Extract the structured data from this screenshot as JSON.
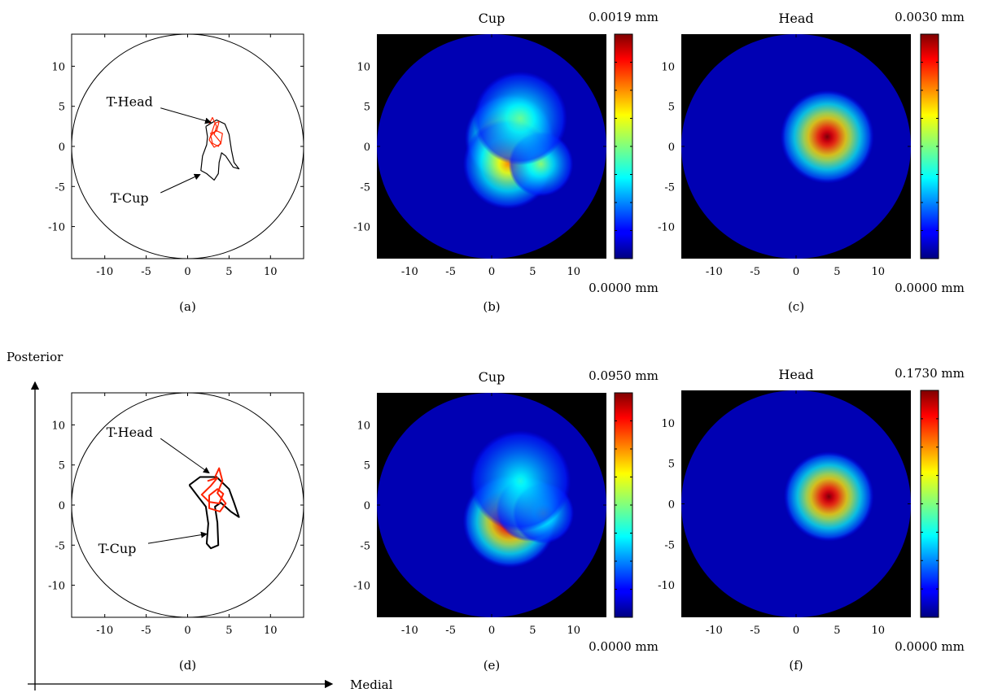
{
  "figure": {
    "posterior_label": "Posterior",
    "medial_label": "Medial"
  },
  "chart_data": [
    {
      "id": "a",
      "type": "line",
      "caption": "(a)",
      "xlim": [
        -14,
        14
      ],
      "ylim": [
        -14,
        14
      ],
      "xticks": [
        -10,
        -5,
        0,
        5,
        10
      ],
      "yticks": [
        10,
        5,
        0,
        -5,
        -10
      ],
      "grid": false,
      "boundary": {
        "shape": "circle",
        "center": [
          0,
          0
        ],
        "radius": 14
      },
      "annotations": [
        {
          "text": "T-Head",
          "label_at": [
            -7,
            5
          ],
          "arrow_to": [
            2.8,
            3
          ]
        },
        {
          "text": "T-Cup",
          "label_at": [
            -7,
            -7
          ],
          "arrow_to": [
            1.5,
            -3.5
          ]
        }
      ],
      "series": [
        {
          "color": "#000000",
          "points": [
            [
              2.2,
              2.5
            ],
            [
              3.5,
              3.3
            ],
            [
              4.5,
              2.8
            ],
            [
              5,
              1.5
            ],
            [
              5.3,
              -0.5
            ],
            [
              5.6,
              -2
            ],
            [
              6.2,
              -2.8
            ],
            [
              5.5,
              -2.6
            ],
            [
              4.6,
              -1.2
            ],
            [
              4.1,
              -0.8
            ],
            [
              3.8,
              -2
            ],
            [
              3.7,
              -3.4
            ],
            [
              3.2,
              -4.2
            ],
            [
              2.3,
              -3.4
            ],
            [
              1.6,
              -3
            ],
            [
              1.8,
              -1.2
            ],
            [
              2.3,
              0.2
            ],
            [
              2.4,
              1.2
            ],
            [
              2.2,
              2.5
            ]
          ]
        },
        {
          "color": "#ff2200",
          "points": [
            [
              2.6,
              2.8
            ],
            [
              3,
              3.6
            ],
            [
              3.5,
              2.5
            ],
            [
              3.2,
              1.5
            ],
            [
              4,
              0.5
            ],
            [
              3.7,
              0
            ],
            [
              3,
              0.4
            ],
            [
              2.8,
              1.3
            ],
            [
              3.4,
              2
            ],
            [
              4.2,
              1.6
            ],
            [
              4,
              0.3
            ],
            [
              3.2,
              -0.1
            ],
            [
              2.6,
              0.8
            ],
            [
              3.3,
              2.9
            ],
            [
              3.8,
              3.1
            ],
            [
              3.5,
              1.9
            ],
            [
              2.7,
              1.6
            ]
          ]
        }
      ]
    },
    {
      "id": "b",
      "type": "heatmap",
      "caption": "(b)",
      "title": "Cup",
      "colorbar_max": "0.0019 mm",
      "colorbar_min": "0.0000 mm",
      "xlim": [
        -14,
        14
      ],
      "ylim": [
        -14,
        14
      ],
      "xticks": [
        -10,
        -5,
        0,
        5,
        10
      ],
      "yticks": [
        10,
        5,
        0,
        -5,
        -10
      ],
      "background": "#000000",
      "disk": {
        "center": [
          0,
          0
        ],
        "radius": 14
      },
      "hotspots": [
        {
          "center": [
            2.2,
            1.0
          ],
          "radius": 2.5,
          "intensity": 1.0
        },
        {
          "center": [
            2.0,
            -2.2
          ],
          "radius": 2.5,
          "intensity": 0.7
        },
        {
          "center": [
            6.0,
            -2.2
          ],
          "radius": 1.8,
          "intensity": 0.45
        },
        {
          "center": [
            3.5,
            3.5
          ],
          "radius": 2.6,
          "intensity": 0.4
        }
      ]
    },
    {
      "id": "c",
      "type": "heatmap",
      "caption": "(c)",
      "title": "Head",
      "colorbar_max": "0.0030 mm",
      "colorbar_min": "0.0000 mm",
      "xlim": [
        -14,
        14
      ],
      "ylim": [
        -14,
        14
      ],
      "xticks": [
        -10,
        -5,
        0,
        5,
        10
      ],
      "yticks": [
        10,
        5,
        0,
        -5,
        -10
      ],
      "background": "#000000",
      "disk": {
        "center": [
          0,
          0
        ],
        "radius": 14
      },
      "hotspots": [
        {
          "center": [
            3.8,
            1.2
          ],
          "radius": 2.6,
          "intensity": 1.0
        }
      ]
    },
    {
      "id": "d",
      "type": "line",
      "caption": "(d)",
      "xlim": [
        -14,
        14
      ],
      "ylim": [
        -14,
        14
      ],
      "xticks": [
        -10,
        -5,
        0,
        5,
        10
      ],
      "yticks": [
        10,
        5,
        0,
        -5,
        -10
      ],
      "grid": false,
      "boundary": {
        "shape": "circle",
        "center": [
          0,
          0
        ],
        "radius": 14
      },
      "annotations": [
        {
          "text": "T-Head",
          "label_at": [
            -7,
            8.5
          ],
          "arrow_to": [
            2.6,
            4
          ]
        },
        {
          "text": "T-Cup",
          "label_at": [
            -8.5,
            -6
          ],
          "arrow_to": [
            2.3,
            -3.6
          ]
        }
      ],
      "series": [
        {
          "color": "#000000",
          "points": [
            [
              0.2,
              2.5
            ],
            [
              1.5,
              3.5
            ],
            [
              3.5,
              3.5
            ],
            [
              5,
              2
            ],
            [
              5.6,
              0.3
            ],
            [
              6.2,
              -1.5
            ],
            [
              5.2,
              -0.8
            ],
            [
              4,
              0.3
            ],
            [
              3.3,
              -0.2
            ],
            [
              3.6,
              -2.2
            ],
            [
              3.7,
              -5
            ],
            [
              2.8,
              -5.4
            ],
            [
              2.3,
              -4.8
            ],
            [
              2.5,
              -2.3
            ],
            [
              2.2,
              -0.2
            ],
            [
              1.3,
              1
            ],
            [
              0.2,
              2.5
            ]
          ]
        },
        {
          "color": "#ff2200",
          "points": [
            [
              3.3,
              3.5
            ],
            [
              3.8,
              4.6
            ],
            [
              4.2,
              3
            ],
            [
              3.6,
              1.5
            ],
            [
              4.6,
              0.2
            ],
            [
              3.9,
              -0.8
            ],
            [
              2.6,
              -0.4
            ],
            [
              2.6,
              1.2
            ],
            [
              3.6,
              2
            ],
            [
              4.3,
              1.4
            ],
            [
              3.8,
              0.2
            ],
            [
              2.6,
              0.4
            ],
            [
              1.7,
              1.3
            ],
            [
              2.8,
              2.4
            ],
            [
              3.6,
              3.4
            ],
            [
              2.4,
              3
            ]
          ]
        }
      ]
    },
    {
      "id": "e",
      "type": "heatmap",
      "caption": "(e)",
      "title": "Cup",
      "colorbar_max": "0.0950 mm",
      "colorbar_min": "0.0000 mm",
      "xlim": [
        -14,
        14
      ],
      "ylim": [
        -14,
        14
      ],
      "xticks": [
        -10,
        -5,
        0,
        5,
        10
      ],
      "yticks": [
        10,
        5,
        0,
        -5,
        -10
      ],
      "background": "#000000",
      "disk": {
        "center": [
          0,
          0
        ],
        "radius": 14
      },
      "hotspots": [
        {
          "center": [
            2.2,
            -2.0
          ],
          "radius": 2.6,
          "intensity": 1.0
        },
        {
          "center": [
            4.5,
            -0.5
          ],
          "radius": 1.8,
          "intensity": 0.6
        },
        {
          "center": [
            6.3,
            -1.0
          ],
          "radius": 1.7,
          "intensity": 0.4
        },
        {
          "center": [
            3.5,
            3.0
          ],
          "radius": 2.8,
          "intensity": 0.32
        }
      ]
    },
    {
      "id": "f",
      "type": "heatmap",
      "caption": "(f)",
      "title": "Head",
      "colorbar_max": "0.1730 mm",
      "colorbar_min": "0.0000 mm",
      "xlim": [
        -14,
        14
      ],
      "ylim": [
        -14,
        14
      ],
      "xticks": [
        -10,
        -5,
        0,
        5,
        10
      ],
      "yticks": [
        10,
        5,
        0,
        -5,
        -10
      ],
      "background": "#000000",
      "disk": {
        "center": [
          0,
          0
        ],
        "radius": 14
      },
      "hotspots": [
        {
          "center": [
            4.0,
            0.9
          ],
          "radius": 2.5,
          "intensity": 1.0
        }
      ]
    }
  ]
}
